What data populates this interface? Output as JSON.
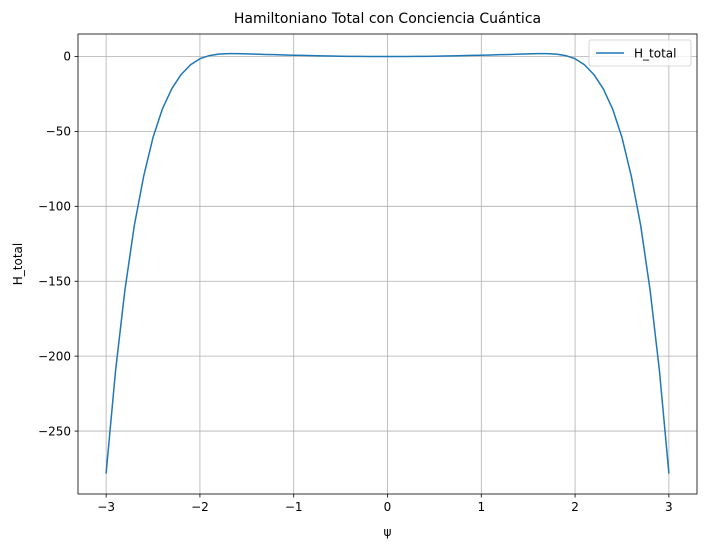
{
  "chart_data": {
    "type": "line",
    "title": "Hamiltoniano Total con Conciencia Cuántica",
    "xlabel": "ψ",
    "ylabel": "H_total",
    "xlim": [
      -3.3,
      3.3
    ],
    "ylim": [
      -292,
      15
    ],
    "xticks": [
      -3,
      -2,
      -1,
      0,
      1,
      2,
      3
    ],
    "xtick_labels": [
      "−3",
      "−2",
      "−1",
      "0",
      "1",
      "2",
      "3"
    ],
    "yticks": [
      0,
      -50,
      -100,
      -150,
      -200,
      -250
    ],
    "ytick_labels": [
      "0",
      "−50",
      "−100",
      "−150",
      "−200",
      "−250"
    ],
    "grid": true,
    "legend_position": "upper right",
    "series": [
      {
        "name": "H_total",
        "color": "#1f77b4",
        "x": [
          -3.0,
          -2.9,
          -2.8,
          -2.7,
          -2.6,
          -2.5,
          -2.4,
          -2.3,
          -2.2,
          -2.1,
          -2.0,
          -1.9,
          -1.8,
          -1.7,
          -1.6,
          -1.5,
          -1.4,
          -1.3,
          -1.2,
          -1.1,
          -1.0,
          -0.9,
          -0.8,
          -0.7,
          -0.6,
          -0.5,
          -0.4,
          -0.3,
          -0.2,
          -0.1,
          0.0,
          0.1,
          0.2,
          0.3,
          0.4,
          0.5,
          0.6,
          0.7,
          0.8,
          0.9,
          1.0,
          1.1,
          1.2,
          1.3,
          1.4,
          1.5,
          1.6,
          1.7,
          1.8,
          1.9,
          2.0,
          2.1,
          2.2,
          2.3,
          2.4,
          2.5,
          2.6,
          2.7,
          2.8,
          2.9,
          3.0
        ],
        "y": [
          -278,
          -210,
          -156,
          -113,
          -80,
          -54,
          -35,
          -21.5,
          -12,
          -5.5,
          -1.5,
          0.6,
          1.6,
          1.9,
          1.9,
          1.75,
          1.55,
          1.35,
          1.2,
          1.0,
          0.85,
          0.7,
          0.55,
          0.4,
          0.28,
          0.18,
          0.1,
          0.05,
          0.02,
          0.0,
          0.0,
          0.0,
          0.02,
          0.05,
          0.1,
          0.18,
          0.28,
          0.4,
          0.55,
          0.7,
          0.85,
          1.0,
          1.2,
          1.35,
          1.55,
          1.75,
          1.9,
          1.9,
          1.6,
          0.6,
          -1.5,
          -5.5,
          -12,
          -21.5,
          -35,
          -54,
          -80,
          -113,
          -156,
          -210,
          -278
        ]
      }
    ]
  }
}
